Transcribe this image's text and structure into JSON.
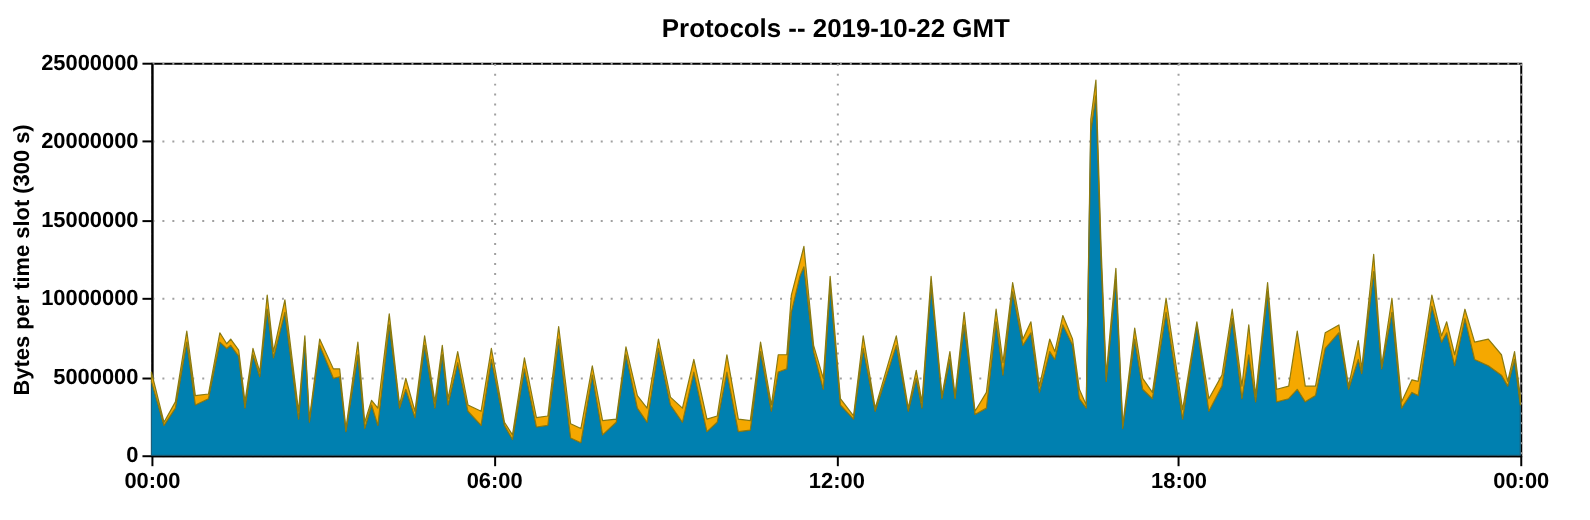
{
  "chart_data": {
    "type": "area",
    "title": "Protocols -- 2019-10-22 GMT",
    "ylabel": "Bytes per time slot (300 s)",
    "stacked": true,
    "grid": true,
    "x": [
      0.0,
      0.22,
      0.42,
      0.62,
      0.77,
      1.0,
      1.2,
      1.32,
      1.39,
      1.53,
      1.64,
      1.78,
      1.9,
      2.03,
      2.14,
      2.34,
      2.58,
      2.69,
      2.77,
      2.95,
      3.19,
      3.3,
      3.41,
      3.62,
      3.74,
      3.86,
      3.97,
      4.17,
      4.35,
      4.46,
      4.62,
      4.79,
      4.97,
      5.1,
      5.2,
      5.37,
      5.55,
      5.78,
      5.96,
      6.19,
      6.33,
      6.54,
      6.75,
      6.95,
      7.14,
      7.35,
      7.53,
      7.73,
      7.91,
      8.15,
      8.32,
      8.52,
      8.69,
      8.89,
      9.1,
      9.31,
      9.51,
      9.74,
      9.92,
      10.09,
      10.29,
      10.5,
      10.68,
      10.87,
      10.99,
      11.14,
      11.22,
      11.37,
      11.44,
      11.61,
      11.78,
      11.9,
      12.08,
      12.31,
      12.48,
      12.69,
      13.06,
      13.27,
      13.41,
      13.51,
      13.67,
      13.86,
      14.0,
      14.09,
      14.25,
      14.44,
      14.64,
      14.81,
      14.93,
      15.1,
      15.28,
      15.42,
      15.57,
      15.75,
      15.84,
      15.98,
      16.15,
      16.27,
      16.39,
      16.47,
      16.56,
      16.65,
      16.74,
      16.91,
      17.03,
      17.24,
      17.38,
      17.55,
      17.79,
      18.08,
      18.33,
      18.54,
      18.77,
      18.95,
      19.12,
      19.24,
      19.36,
      19.57,
      19.73,
      19.94,
      20.09,
      20.23,
      20.41,
      20.58,
      20.82,
      20.99,
      21.16,
      21.22,
      21.43,
      21.57,
      21.75,
      21.92,
      22.1,
      22.21,
      22.45,
      22.62,
      22.71,
      22.85,
      23.03,
      23.2,
      23.44,
      23.67,
      23.78,
      23.9,
      24.0
    ],
    "series": [
      {
        "color": "#0080b0",
        "values": [
          4700000,
          1900000,
          3000000,
          7200000,
          3200000,
          3600000,
          7200000,
          6800000,
          7000000,
          6300000,
          3000000,
          6400000,
          5000000,
          9300000,
          6200000,
          9100000,
          2300000,
          7200000,
          2100000,
          7000000,
          4900000,
          5000000,
          1500000,
          6400000,
          1700000,
          3200000,
          1900000,
          8300000,
          3000000,
          4200000,
          2400000,
          7000000,
          3000000,
          6400000,
          3200000,
          5900000,
          2800000,
          1900000,
          6100000,
          1900000,
          1000000,
          5500000,
          1800000,
          1900000,
          7400000,
          1100000,
          800000,
          5100000,
          1300000,
          2100000,
          6400000,
          3000000,
          2100000,
          6800000,
          3200000,
          2100000,
          5300000,
          1500000,
          2100000,
          5300000,
          1500000,
          1600000,
          6600000,
          2800000,
          5300000,
          5500000,
          9100000,
          11400000,
          12000000,
          6600000,
          4200000,
          10800000,
          3200000,
          2300000,
          6800000,
          2800000,
          7000000,
          2800000,
          4900000,
          3000000,
          10800000,
          3600000,
          6100000,
          3600000,
          8300000,
          2600000,
          3000000,
          8500000,
          5100000,
          10400000,
          7000000,
          7800000,
          4000000,
          6600000,
          6100000,
          8300000,
          7000000,
          3600000,
          3000000,
          20600000,
          22900000,
          12500000,
          4700000,
          11200000,
          1700000,
          7400000,
          4200000,
          3600000,
          9100000,
          2300000,
          8300000,
          2800000,
          4400000,
          8700000,
          3600000,
          6400000,
          3400000,
          10400000,
          3400000,
          3600000,
          4200000,
          3400000,
          3800000,
          6800000,
          7800000,
          4200000,
          6100000,
          5200000,
          11700000,
          5500000,
          9100000,
          3000000,
          4000000,
          3800000,
          9500000,
          7200000,
          7800000,
          5700000,
          8700000,
          6100000,
          5700000,
          5100000,
          4400000,
          6100000,
          3200000
        ]
      },
      {
        "color": "#f5a800",
        "values": [
          600000,
          200000,
          400000,
          700000,
          600000,
          300000,
          600000,
          300000,
          400000,
          400000,
          400000,
          400000,
          300000,
          900000,
          400000,
          800000,
          500000,
          400000,
          200000,
          400000,
          600000,
          500000,
          200000,
          800000,
          400000,
          300000,
          1100000,
          700000,
          200000,
          700000,
          400000,
          600000,
          400000,
          600000,
          400000,
          700000,
          400000,
          900000,
          700000,
          200000,
          300000,
          700000,
          600000,
          600000,
          800000,
          900000,
          900000,
          600000,
          900000,
          200000,
          500000,
          800000,
          900000,
          600000,
          500000,
          900000,
          800000,
          800000,
          400000,
          1100000,
          800000,
          600000,
          600000,
          400000,
          1100000,
          900000,
          1100000,
          900000,
          1300000,
          400000,
          700000,
          600000,
          400000,
          200000,
          800000,
          200000,
          600000,
          200000,
          500000,
          400000,
          600000,
          200000,
          500000,
          200000,
          800000,
          200000,
          1000000,
          800000,
          800000,
          600000,
          400000,
          700000,
          400000,
          800000,
          500000,
          600000,
          400000,
          600000,
          200000,
          800000,
          1000000,
          800000,
          400000,
          700000,
          200000,
          700000,
          700000,
          400000,
          900000,
          600000,
          200000,
          800000,
          700000,
          600000,
          800000,
          1900000,
          400000,
          600000,
          800000,
          800000,
          3700000,
          1000000,
          600000,
          1000000,
          500000,
          200000,
          1200000,
          300000,
          1100000,
          200000,
          900000,
          400000,
          800000,
          900000,
          700000,
          400000,
          700000,
          700000,
          600000,
          1100000,
          1700000,
          1300000,
          300000,
          500000,
          600000
        ]
      }
    ],
    "xlim": [
      0,
      24
    ],
    "xticks": [
      {
        "value": 0,
        "label": "00:00"
      },
      {
        "value": 6,
        "label": "06:00"
      },
      {
        "value": 12,
        "label": "12:00"
      },
      {
        "value": 18,
        "label": "18:00"
      },
      {
        "value": 24,
        "label": "00:00"
      }
    ],
    "ylim": [
      0,
      25000000
    ],
    "yticks": [
      0,
      5000000,
      10000000,
      15000000,
      20000000,
      25000000
    ]
  }
}
